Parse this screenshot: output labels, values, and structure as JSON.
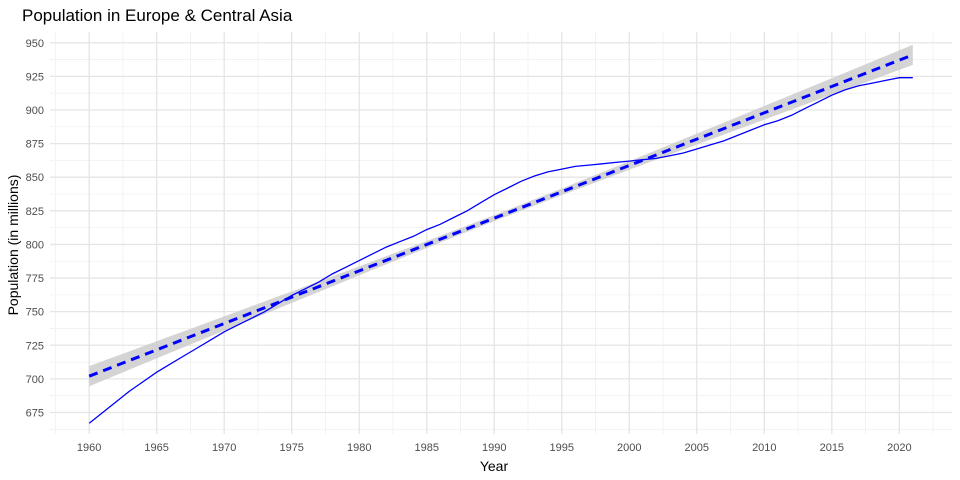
{
  "chart_data": {
    "type": "line",
    "title": "Population in Europe & Central Asia",
    "xlabel": "Year",
    "ylabel": "Population (in millions)",
    "xlim": [
      1957.1,
      2023.9
    ],
    "ylim": [
      659,
      958
    ],
    "x_ticks": [
      1960,
      1965,
      1970,
      1975,
      1980,
      1985,
      1990,
      1995,
      2000,
      2005,
      2010,
      2015,
      2020
    ],
    "y_ticks": [
      675,
      700,
      725,
      750,
      775,
      800,
      825,
      850,
      875,
      900,
      925,
      950
    ],
    "grid": true,
    "legend": "none",
    "colors": {
      "series": "#0000ff",
      "trend": "#0000ff",
      "band": "#cccccc"
    },
    "series": [
      {
        "values_x": [
          1960,
          1961,
          1962,
          1963,
          1964,
          1965,
          1966,
          1967,
          1968,
          1969,
          1970,
          1971,
          1972,
          1973,
          1974,
          1975,
          1976,
          1977,
          1978,
          1979,
          1980,
          1981,
          1982,
          1983,
          1984,
          1985,
          1986,
          1987,
          1988,
          1989,
          1990,
          1991,
          1992,
          1993,
          1994,
          1995,
          1996,
          1997,
          1998,
          1999,
          2000,
          2001,
          2002,
          2003,
          2004,
          2005,
          2006,
          2007,
          2008,
          2009,
          2010,
          2011,
          2012,
          2013,
          2014,
          2015,
          2016,
          2017,
          2018,
          2019,
          2020,
          2021
        ],
        "values_y": [
          667,
          675,
          683,
          691,
          698,
          705,
          711,
          717,
          723,
          729,
          735,
          740,
          745,
          750,
          756,
          762,
          767,
          772,
          778,
          783,
          788,
          793,
          798,
          802,
          806,
          811,
          815,
          820,
          825,
          831,
          837,
          842,
          847,
          851,
          854,
          856,
          858,
          859,
          860,
          861,
          862,
          863,
          864,
          866,
          868,
          871,
          874,
          877,
          881,
          885,
          889,
          892,
          896,
          901,
          906,
          911,
          915,
          918,
          920,
          922,
          924,
          924
        ]
      }
    ],
    "trend": {
      "kind": "linear fit with confidence band",
      "x": [
        1960,
        2021
      ],
      "y": [
        702,
        941
      ],
      "band_lower": [
        694.5,
        933.5
      ],
      "band_upper": [
        709.5,
        948.5
      ],
      "band_center_width": 4.5
    }
  }
}
